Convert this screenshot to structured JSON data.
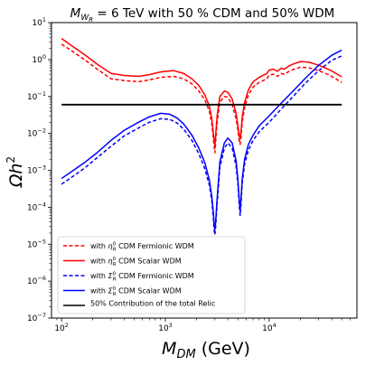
{
  "chart_data": {
    "type": "line",
    "title_prefix": "M",
    "title_sub": "W",
    "title_subsub": "R",
    "title_rest": " = 6 TeV with 50 % CDM and 50% WDM",
    "xlabel_main": "M",
    "xlabel_sub": "DM",
    "xlabel_rest": " (GeV)",
    "ylabel_main": "Ωh",
    "ylabel_sup": "2",
    "x_scale": "log",
    "y_scale": "log",
    "xlim": [
      80,
      70000
    ],
    "ylim": [
      1e-07,
      10
    ],
    "x_ticks": [
      {
        "value": 100,
        "base": "10",
        "exp": "2"
      },
      {
        "value": 1000,
        "base": "10",
        "exp": "3"
      },
      {
        "value": 10000,
        "base": "10",
        "exp": "4"
      }
    ],
    "y_ticks": [
      {
        "value": 1e-07,
        "base": "10",
        "exp": "−7"
      },
      {
        "value": 1e-06,
        "base": "10",
        "exp": "−6"
      },
      {
        "value": 1e-05,
        "base": "10",
        "exp": "−5"
      },
      {
        "value": 0.0001,
        "base": "10",
        "exp": "−4"
      },
      {
        "value": 0.001,
        "base": "10",
        "exp": "−3"
      },
      {
        "value": 0.01,
        "base": "10",
        "exp": "−2"
      },
      {
        "value": 0.1,
        "base": "10",
        "exp": "−1"
      },
      {
        "value": 1,
        "base": "10",
        "exp": "0"
      },
      {
        "value": 10,
        "base": "10",
        "exp": "1"
      }
    ],
    "legend_position": "lower-left",
    "series": [
      {
        "legend_prefix": "with ",
        "sym": "η",
        "sym_sup": "0",
        "sym_sub": "R",
        "legend_rest": " CDM Fermionic WDM",
        "color": "#ff0000",
        "dash": "dashed",
        "x": [
          100,
          130,
          170,
          220,
          300,
          400,
          550,
          700,
          900,
          1200,
          1500,
          1800,
          2100,
          2400,
          2650,
          2800,
          2900,
          2950,
          3000,
          3050,
          3150,
          3350,
          3700,
          4000,
          4400,
          4800,
          5000,
          5150,
          5250,
          5350,
          5500,
          5800,
          6300,
          7000,
          8000,
          9500,
          10000,
          11000,
          12000,
          13000,
          14000,
          15000,
          16000,
          17500,
          20000,
          24000,
          30000,
          38000,
          50000
        ],
        "y": [
          2.6,
          1.6,
          0.95,
          0.55,
          0.3,
          0.27,
          0.25,
          0.28,
          0.33,
          0.35,
          0.3,
          0.22,
          0.14,
          0.08,
          0.04,
          0.018,
          0.007,
          0.0045,
          0.003,
          0.006,
          0.02,
          0.07,
          0.1,
          0.095,
          0.06,
          0.025,
          0.012,
          0.006,
          0.005,
          0.008,
          0.02,
          0.05,
          0.11,
          0.18,
          0.24,
          0.3,
          0.38,
          0.4,
          0.35,
          0.42,
          0.4,
          0.45,
          0.5,
          0.55,
          0.62,
          0.6,
          0.5,
          0.38,
          0.24
        ]
      },
      {
        "legend_prefix": "with ",
        "sym": "η",
        "sym_sup": "0",
        "sym_sub": "R",
        "legend_rest": " CDM Scalar WDM",
        "color": "#ff0000",
        "dash": "solid",
        "x": [
          100,
          130,
          170,
          220,
          300,
          400,
          550,
          700,
          900,
          1200,
          1500,
          1800,
          2100,
          2400,
          2650,
          2800,
          2900,
          2950,
          3000,
          3050,
          3150,
          3350,
          3700,
          4000,
          4400,
          4800,
          5000,
          5150,
          5250,
          5350,
          5500,
          5800,
          6300,
          7000,
          8000,
          9500,
          10000,
          11000,
          12000,
          13000,
          14000,
          15000,
          16000,
          17500,
          20000,
          24000,
          30000,
          38000,
          50000
        ],
        "y": [
          3.7,
          2.2,
          1.3,
          0.75,
          0.42,
          0.37,
          0.35,
          0.39,
          0.46,
          0.5,
          0.42,
          0.3,
          0.2,
          0.11,
          0.055,
          0.025,
          0.01,
          0.0065,
          0.0045,
          0.009,
          0.03,
          0.1,
          0.14,
          0.13,
          0.085,
          0.035,
          0.016,
          0.0085,
          0.007,
          0.011,
          0.028,
          0.07,
          0.15,
          0.25,
          0.33,
          0.42,
          0.52,
          0.55,
          0.48,
          0.58,
          0.55,
          0.63,
          0.7,
          0.78,
          0.88,
          0.85,
          0.7,
          0.53,
          0.34
        ]
      },
      {
        "legend_prefix": "with ",
        "sym": "Σ",
        "sym_sup": "0",
        "sym_sub": "R",
        "legend_rest": " CDM Fermionic WDM",
        "color": "#0000ff",
        "dash": "dashed",
        "x": [
          100,
          130,
          170,
          220,
          300,
          400,
          550,
          700,
          900,
          1100,
          1300,
          1500,
          1800,
          2100,
          2400,
          2650,
          2800,
          2900,
          2950,
          3000,
          3050,
          3150,
          3350,
          3700,
          4000,
          4400,
          4800,
          5000,
          5150,
          5250,
          5350,
          5500,
          5800,
          6300,
          7000,
          8000,
          10000,
          13000,
          17000,
          22000,
          30000,
          40000,
          50000
        ],
        "y": [
          0.00042,
          0.0007,
          0.0012,
          0.0022,
          0.0045,
          0.0085,
          0.014,
          0.02,
          0.025,
          0.024,
          0.019,
          0.013,
          0.0065,
          0.0028,
          0.0011,
          0.0004,
          0.00015,
          5e-05,
          2.3e-05,
          1.8e-05,
          3e-05,
          0.00012,
          0.0012,
          0.004,
          0.0055,
          0.004,
          0.0013,
          0.0004,
          0.00011,
          6e-05,
          0.00012,
          0.00045,
          0.0015,
          0.0035,
          0.0065,
          0.011,
          0.02,
          0.045,
          0.1,
          0.22,
          0.5,
          0.95,
          1.25
        ]
      },
      {
        "legend_prefix": "with ",
        "sym": "Σ",
        "sym_sup": "0",
        "sym_sub": "R",
        "legend_rest": " CDM Scalar WDM",
        "color": "#0000ff",
        "dash": "solid",
        "x": [
          100,
          130,
          170,
          220,
          300,
          400,
          550,
          700,
          900,
          1100,
          1300,
          1500,
          1800,
          2100,
          2400,
          2650,
          2800,
          2900,
          2950,
          3000,
          3050,
          3150,
          3350,
          3700,
          4000,
          4400,
          4800,
          5000,
          5150,
          5250,
          5350,
          5500,
          5800,
          6300,
          7000,
          8000,
          10000,
          13000,
          17000,
          22000,
          30000,
          40000,
          50000
        ],
        "y": [
          0.0006,
          0.001,
          0.0017,
          0.003,
          0.0065,
          0.012,
          0.02,
          0.028,
          0.035,
          0.033,
          0.026,
          0.018,
          0.009,
          0.004,
          0.0016,
          0.00055,
          0.0002,
          7e-05,
          3.2e-05,
          2.5e-05,
          4.2e-05,
          0.00017,
          0.0017,
          0.0055,
          0.0075,
          0.0055,
          0.0018,
          0.00055,
          0.00015,
          8e-05,
          0.00017,
          0.0006,
          0.002,
          0.005,
          0.009,
          0.016,
          0.03,
          0.065,
          0.14,
          0.3,
          0.7,
          1.3,
          1.8
        ]
      },
      {
        "legend_prefix": "",
        "sym": "",
        "sym_sup": "",
        "sym_sub": "",
        "legend_rest": "50% Contribution of the total Relic",
        "color": "#000000",
        "dash": "solid",
        "x": [
          100,
          50000
        ],
        "y": [
          0.06,
          0.06
        ]
      }
    ]
  }
}
